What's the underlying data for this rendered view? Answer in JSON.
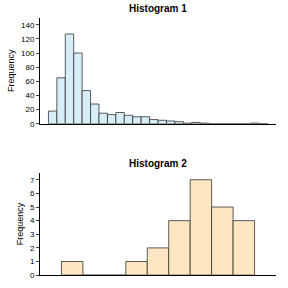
{
  "chart_data": [
    {
      "type": "histogram",
      "title": "Histogram 1",
      "y_label": "Frequency",
      "bins": [
        0,
        1,
        2,
        3,
        4,
        5,
        6,
        7,
        8,
        9,
        10,
        11,
        12,
        13,
        14,
        15,
        16,
        17,
        18,
        19,
        20,
        21,
        22,
        23,
        24,
        25,
        26
      ],
      "counts": [
        18,
        65,
        127,
        100,
        47,
        28,
        15,
        13,
        16,
        12,
        10,
        10,
        6,
        5,
        4,
        3,
        1,
        2,
        1,
        0,
        0,
        0,
        0,
        0,
        1,
        0
      ],
      "color": "#d7eef9",
      "xlim": [
        -1,
        27
      ],
      "ylim": [
        0,
        150
      ],
      "yticks": [
        0,
        20,
        40,
        60,
        80,
        100,
        120,
        140
      ],
      "tick_labels": "y",
      "grid": false
    },
    {
      "type": "histogram",
      "title": "Histogram 2",
      "y_label": "Frequency",
      "bins": [
        0,
        1,
        2,
        3,
        4,
        5,
        6,
        7,
        8,
        9
      ],
      "counts": [
        1,
        0,
        0,
        1,
        2,
        4,
        7,
        5,
        4
      ],
      "color": "#fde7c2",
      "xlim": [
        -1,
        10
      ],
      "ylim": [
        0,
        7.5
      ],
      "yticks": [
        0,
        1,
        2,
        3,
        4,
        5,
        6,
        7
      ],
      "tick_labels": "y",
      "grid": false
    }
  ]
}
